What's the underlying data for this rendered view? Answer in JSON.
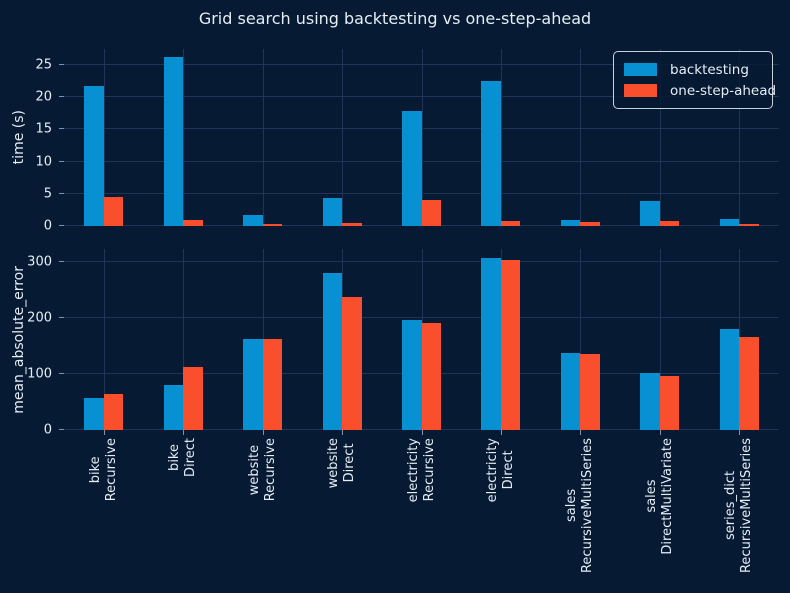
{
  "title": "Grid search using backtesting vs one-step-ahead",
  "colors": {
    "background": "#061a33",
    "grid": "#1f3557",
    "tickmark": "#7f90a8",
    "text": "#e6edf5",
    "legend_border": "#c9d1da",
    "backtesting": "#0791d3",
    "one_step_ahead": "#f94f2c"
  },
  "legend": {
    "items": [
      {
        "label": "backtesting",
        "color_key": "backtesting"
      },
      {
        "label": "one-step-ahead",
        "color_key": "one_step_ahead"
      }
    ],
    "position": "upper right"
  },
  "x_categories": [
    [
      "bike",
      "Recursive"
    ],
    [
      "bike",
      "Direct"
    ],
    [
      "website",
      "Recursive"
    ],
    [
      "website",
      "Direct"
    ],
    [
      "electricity",
      "Recursive"
    ],
    [
      "electricity",
      "Direct"
    ],
    [
      "sales",
      "RecursiveMultiSeries"
    ],
    [
      "sales",
      "DirectMultiVariate"
    ],
    [
      "series_dict",
      "RecursiveMultiSeries"
    ]
  ],
  "chart_data": [
    {
      "type": "bar",
      "panel": "top",
      "title": "Grid search using backtesting vs one-step-ahead",
      "xlabel": "",
      "ylabel": "time (s)",
      "ylim": [
        0,
        27.5
      ],
      "yticks": [
        0,
        5,
        10,
        15,
        20,
        25
      ],
      "grid": true,
      "legend_position": "upper right",
      "categories": [
        "bike Recursive",
        "bike Direct",
        "website Recursive",
        "website Direct",
        "electricity Recursive",
        "electricity Direct",
        "sales RecursiveMultiSeries",
        "sales DirectMultiVariate",
        "series_dict RecursiveMultiSeries"
      ],
      "series": [
        {
          "name": "backtesting",
          "values": [
            21.8,
            26.2,
            1.7,
            4.3,
            17.8,
            22.6,
            0.95,
            3.9,
            1.1
          ]
        },
        {
          "name": "one-step-ahead",
          "values": [
            4.5,
            1.0,
            0.25,
            0.4,
            4.0,
            0.8,
            0.7,
            0.8,
            0.35
          ]
        }
      ]
    },
    {
      "type": "bar",
      "panel": "bottom",
      "xlabel": "",
      "ylabel": "mean_absolute_error",
      "ylim": [
        0,
        324
      ],
      "yticks": [
        0,
        100,
        200,
        300
      ],
      "grid": true,
      "categories": [
        "bike Recursive",
        "bike Direct",
        "website Recursive",
        "website Direct",
        "electricity Recursive",
        "electricity Direct",
        "sales RecursiveMultiSeries",
        "sales DirectMultiVariate",
        "series_dict RecursiveMultiSeries"
      ],
      "series": [
        {
          "name": "backtesting",
          "values": [
            57,
            80,
            163,
            281,
            197,
            308,
            138,
            102,
            181
          ]
        },
        {
          "name": "one-step-ahead",
          "values": [
            64,
            113,
            163,
            238,
            192,
            304,
            136,
            97,
            166
          ]
        }
      ]
    }
  ]
}
